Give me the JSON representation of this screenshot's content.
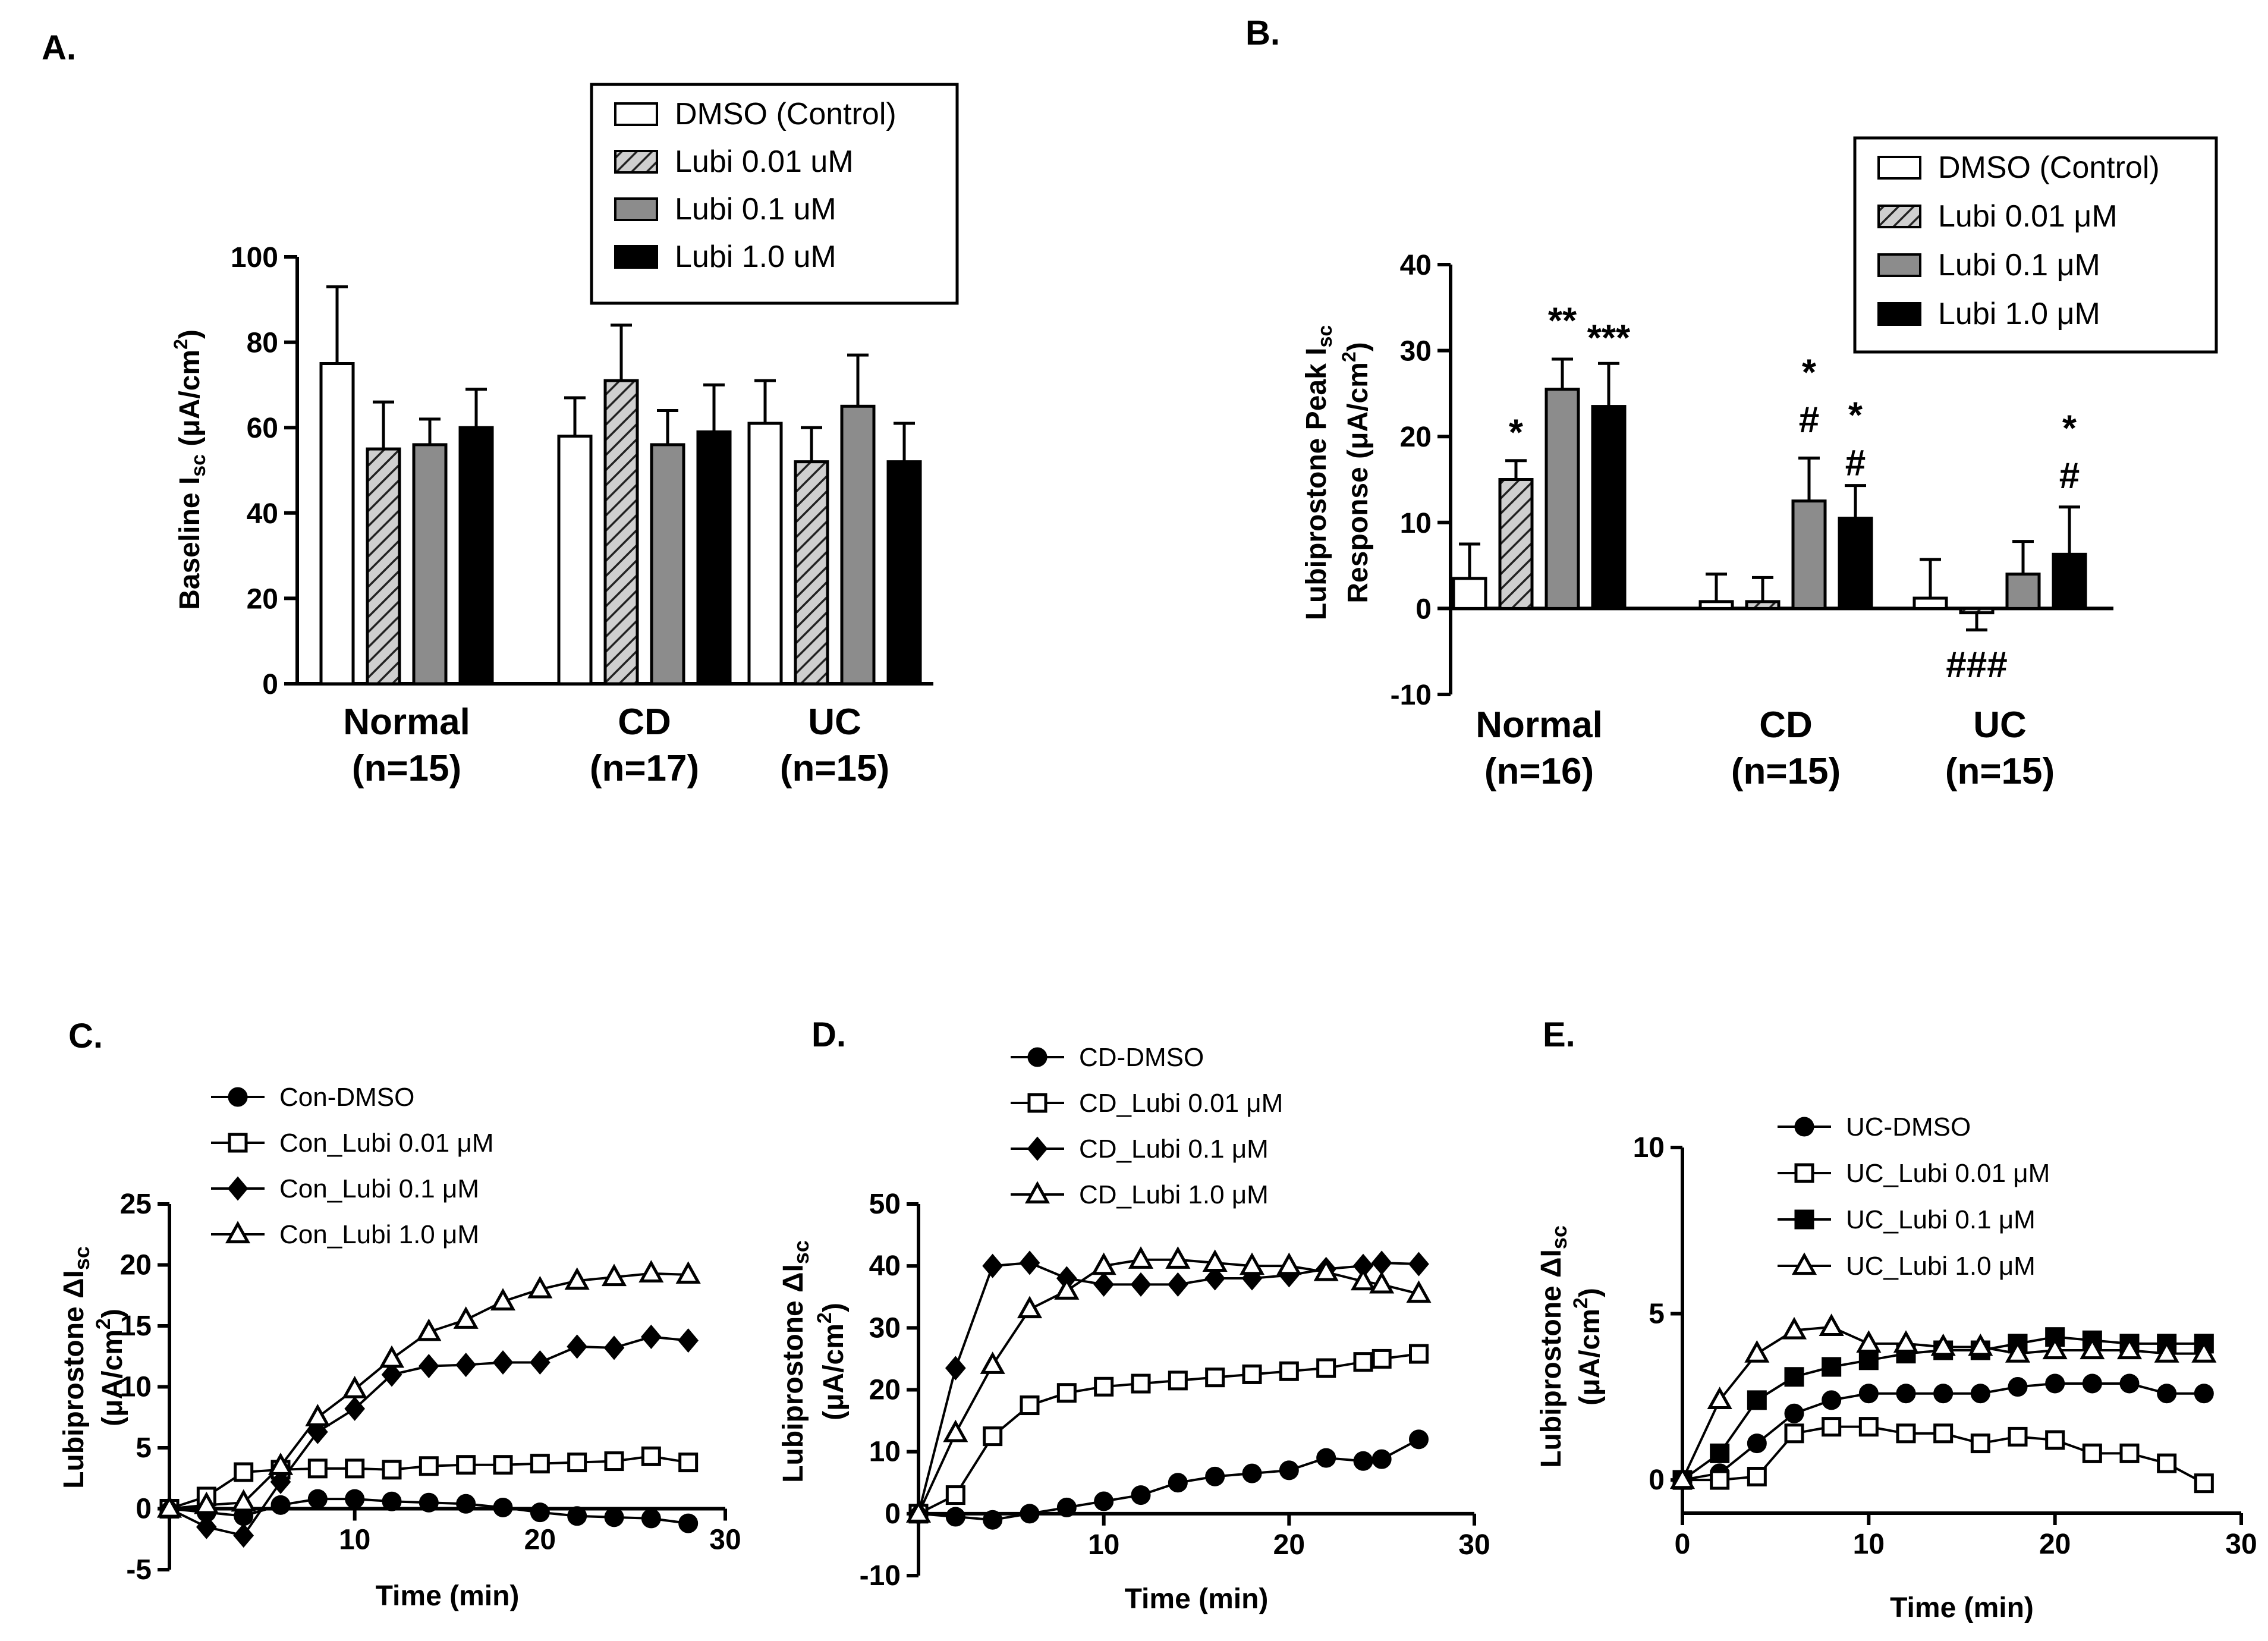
{
  "chart_data": [
    {
      "panel": "A.",
      "type": "bar",
      "ylabel": "Baseline I_sc (μA/cm²)",
      "ylabel_main": "Baseline I",
      "ylabel_sub": "sc",
      "ylabel_unit": " (μA/cm",
      "ylabel_sup": "2",
      "ylabel_close": ")",
      "ylim": [
        0,
        100
      ],
      "yticks": [
        "0",
        "20",
        "40",
        "60",
        "80",
        "100"
      ],
      "categories": [
        "Normal",
        "CD",
        "UC"
      ],
      "category_n": [
        "(n=15)",
        "(n=17)",
        "(n=15)"
      ],
      "legend": [
        "DMSO (Control)",
        "Lubi 0.01 uM",
        "Lubi 0.1 uM",
        "Lubi 1.0 uM"
      ],
      "series": [
        {
          "name": "DMSO (Control)",
          "values": [
            75,
            58,
            61
          ],
          "errors": [
            18,
            9,
            10
          ]
        },
        {
          "name": "Lubi 0.01 uM",
          "values": [
            55,
            71,
            52
          ],
          "errors": [
            11,
            13,
            8
          ]
        },
        {
          "name": "Lubi 0.1 uM",
          "values": [
            56,
            56,
            65
          ],
          "errors": [
            6,
            8,
            12
          ]
        },
        {
          "name": "Lubi 1.0 uM",
          "values": [
            60,
            59,
            52
          ],
          "errors": [
            9,
            11,
            9
          ]
        }
      ]
    },
    {
      "panel": "B.",
      "type": "bar",
      "ylabel_line1": "Lubiprostone Peak I",
      "ylabel_line1_sub": "sc",
      "ylabel_line2": "Response (μA/cm",
      "ylabel_line2_sup": "2",
      "ylabel_line2_close": ")",
      "ylim": [
        -10,
        40
      ],
      "yticks": [
        "-10",
        "0",
        "10",
        "20",
        "30",
        "40"
      ],
      "categories": [
        "Normal",
        "CD",
        "UC"
      ],
      "category_n": [
        "(n=16)",
        "(n=15)",
        "(n=15)"
      ],
      "legend": [
        "DMSO (Control)",
        "Lubi 0.01 μM",
        "Lubi 0.1 μM",
        "Lubi 1.0 μM"
      ],
      "series": [
        {
          "name": "DMSO (Control)",
          "values": [
            3.5,
            0.8,
            1.2
          ],
          "errors": [
            4,
            3.2,
            4.5
          ]
        },
        {
          "name": "Lubi 0.01 μM",
          "values": [
            15,
            0.8,
            -0.5
          ],
          "errors": [
            2.2,
            2.8,
            2
          ]
        },
        {
          "name": "Lubi 0.1 μM",
          "values": [
            25.5,
            12.5,
            4
          ],
          "errors": [
            3.5,
            5,
            3.8
          ]
        },
        {
          "name": "Lubi 1.0 μM",
          "values": [
            23.5,
            10.5,
            6.3
          ],
          "errors": [
            5,
            3.8,
            5.5
          ]
        }
      ],
      "annotations": [
        {
          "text": "*",
          "group": 0,
          "series": 1,
          "y": 19
        },
        {
          "text": "**",
          "group": 0,
          "series": 2,
          "y": 32
        },
        {
          "text": "***",
          "group": 0,
          "series": 3,
          "y": 30
        },
        {
          "text": "*",
          "group": 1,
          "series": 2,
          "y": 26
        },
        {
          "text": "#",
          "group": 1,
          "series": 2,
          "y": 20.5
        },
        {
          "text": "*",
          "group": 1,
          "series": 3,
          "y": 21
        },
        {
          "text": "#",
          "group": 1,
          "series": 3,
          "y": 15.5
        },
        {
          "text": "*",
          "group": 2,
          "series": 3,
          "y": 19.5
        },
        {
          "text": "#",
          "group": 2,
          "series": 3,
          "y": 14
        },
        {
          "text": "###",
          "group": 2,
          "series": 1,
          "y": -8
        }
      ]
    },
    {
      "panel": "C.",
      "type": "line",
      "xlabel": "Time (min)",
      "ylabel_line1": "Lubiprostone ΔI",
      "ylabel_line1_sub": "sc",
      "ylabel_line2": "(μA/cm",
      "ylabel_line2_sup": "2",
      "ylabel_line2_close": ")",
      "xlim": [
        0,
        30
      ],
      "ylim": [
        -5,
        25
      ],
      "xticks": [
        "10",
        "20",
        "30"
      ],
      "yticks": [
        "-5",
        "0",
        "5",
        "10",
        "15",
        "20",
        "25"
      ],
      "series": [
        {
          "name": "Con-DMSO",
          "marker": "circle-filled",
          "x": [
            0,
            2,
            4,
            6,
            8,
            10,
            12,
            14,
            16,
            18,
            20,
            22,
            24,
            26,
            28
          ],
          "y": [
            0,
            -0.3,
            -0.6,
            0.3,
            0.8,
            0.8,
            0.6,
            0.5,
            0.4,
            0.1,
            -0.3,
            -0.6,
            -0.7,
            -0.8,
            -1.2
          ]
        },
        {
          "name": "Con_Lubi 0.01 μM",
          "marker": "square-open",
          "x": [
            0,
            2,
            4,
            6,
            8,
            10,
            12,
            14,
            16,
            18,
            20,
            22,
            24,
            26,
            28
          ],
          "y": [
            0,
            1,
            3,
            3.2,
            3.3,
            3.3,
            3.2,
            3.5,
            3.6,
            3.6,
            3.7,
            3.8,
            3.9,
            4.3,
            3.8
          ]
        },
        {
          "name": "Con_Lubi 0.1 μM",
          "marker": "diamond-filled",
          "x": [
            0,
            2,
            4,
            6,
            8,
            10,
            12,
            14,
            16,
            18,
            20,
            22,
            24,
            26,
            28
          ],
          "y": [
            0,
            -1.5,
            -2.2,
            2.2,
            6.3,
            8.2,
            11,
            11.7,
            11.8,
            12,
            12,
            13.3,
            13.2,
            14.1,
            13.8
          ]
        },
        {
          "name": "Con_Lubi 1.0 μM",
          "marker": "triangle-open",
          "x": [
            0,
            2,
            4,
            6,
            8,
            10,
            12,
            14,
            16,
            18,
            20,
            22,
            24,
            26,
            28
          ],
          "y": [
            0,
            0.3,
            0.5,
            3.5,
            7.5,
            9.8,
            12.3,
            14.5,
            15.5,
            17,
            18,
            18.7,
            19,
            19.3,
            19.2
          ]
        }
      ]
    },
    {
      "panel": "D.",
      "type": "line",
      "xlabel": "Time (min)",
      "ylabel_line1": "Lubiprostone ΔI",
      "ylabel_line1_sub": "sc",
      "ylabel_line2": "(μA/cm",
      "ylabel_line2_sup": "2",
      "ylabel_line2_close": ")",
      "xlim": [
        0,
        30
      ],
      "ylim": [
        -10,
        50
      ],
      "xticks": [
        "10",
        "20",
        "30"
      ],
      "yticks": [
        "-10",
        "0",
        "10",
        "20",
        "30",
        "40",
        "50"
      ],
      "series": [
        {
          "name": "CD-DMSO",
          "marker": "circle-filled",
          "x": [
            0,
            2,
            4,
            6,
            8,
            10,
            12,
            14,
            16,
            18,
            20,
            22,
            24,
            25,
            27
          ],
          "y": [
            0,
            -0.5,
            -1,
            0,
            1,
            2,
            3,
            5,
            6,
            6.5,
            7,
            9,
            8.5,
            8.8,
            12
          ]
        },
        {
          "name": "CD_Lubi 0.01 μM",
          "marker": "square-open",
          "x": [
            0,
            2,
            4,
            6,
            8,
            10,
            12,
            14,
            16,
            18,
            20,
            22,
            24,
            25,
            27
          ],
          "y": [
            0,
            3,
            12.5,
            17.5,
            19.5,
            20.5,
            21,
            21.5,
            22,
            22.5,
            23,
            23.5,
            24.5,
            25,
            25.8
          ]
        },
        {
          "name": "CD_Lubi 0.1 μM",
          "marker": "diamond-filled",
          "x": [
            0,
            2,
            4,
            6,
            8,
            10,
            12,
            14,
            16,
            18,
            20,
            22,
            24,
            25,
            27
          ],
          "y": [
            0,
            23.5,
            40,
            40.5,
            38,
            37,
            37,
            37,
            38,
            38,
            38.5,
            39.5,
            40,
            40.5,
            40.3
          ]
        },
        {
          "name": "CD_Lubi 1.0 μM",
          "marker": "triangle-open",
          "x": [
            0,
            2,
            4,
            6,
            8,
            10,
            12,
            14,
            16,
            18,
            20,
            22,
            24,
            25,
            27
          ],
          "y": [
            0,
            13,
            24,
            33,
            36,
            40,
            41,
            41,
            40.5,
            40,
            40,
            39,
            37.5,
            37,
            35.5
          ]
        }
      ]
    },
    {
      "panel": "E.",
      "type": "line",
      "xlabel": "Time (min)",
      "ylabel_line1": "Lubiprostone ΔI",
      "ylabel_line1_sub": "sc",
      "ylabel_line2": "(μA/cm",
      "ylabel_line2_sup": "2",
      "ylabel_line2_close": ")",
      "xlim": [
        0,
        30
      ],
      "ylim": [
        -1,
        10
      ],
      "xticks": [
        "0",
        "10",
        "20",
        "30"
      ],
      "yticks": [
        "0",
        "5",
        "10"
      ],
      "series": [
        {
          "name": "UC-DMSO",
          "marker": "circle-filled",
          "x": [
            0,
            2,
            4,
            6,
            8,
            10,
            12,
            14,
            16,
            18,
            20,
            22,
            24,
            26,
            28
          ],
          "y": [
            0,
            0.2,
            1.1,
            2,
            2.4,
            2.6,
            2.6,
            2.6,
            2.6,
            2.8,
            2.9,
            2.9,
            2.9,
            2.6,
            2.6
          ]
        },
        {
          "name": "UC_Lubi 0.01 μM",
          "marker": "square-open",
          "x": [
            0,
            2,
            4,
            6,
            8,
            10,
            12,
            14,
            16,
            18,
            20,
            22,
            24,
            26,
            28
          ],
          "y": [
            0,
            0,
            0.1,
            1.4,
            1.6,
            1.6,
            1.4,
            1.4,
            1.1,
            1.3,
            1.2,
            0.8,
            0.8,
            0.5,
            -0.1
          ]
        },
        {
          "name": "UC_Lubi 0.1 μM",
          "marker": "square-filled",
          "x": [
            0,
            2,
            4,
            6,
            8,
            10,
            12,
            14,
            16,
            18,
            20,
            22,
            24,
            26,
            28
          ],
          "y": [
            0,
            0.8,
            2.4,
            3.1,
            3.4,
            3.6,
            3.8,
            3.9,
            3.9,
            4.1,
            4.3,
            4.2,
            4.1,
            4.1,
            4.1
          ]
        },
        {
          "name": "UC_Lubi 1.0 μM",
          "marker": "triangle-open",
          "x": [
            0,
            2,
            4,
            6,
            8,
            10,
            12,
            14,
            16,
            18,
            20,
            22,
            24,
            26,
            28
          ],
          "y": [
            0,
            2.4,
            3.8,
            4.5,
            4.6,
            4.1,
            4.1,
            4,
            4,
            3.8,
            3.9,
            3.9,
            3.9,
            3.8,
            3.8
          ]
        }
      ]
    }
  ]
}
